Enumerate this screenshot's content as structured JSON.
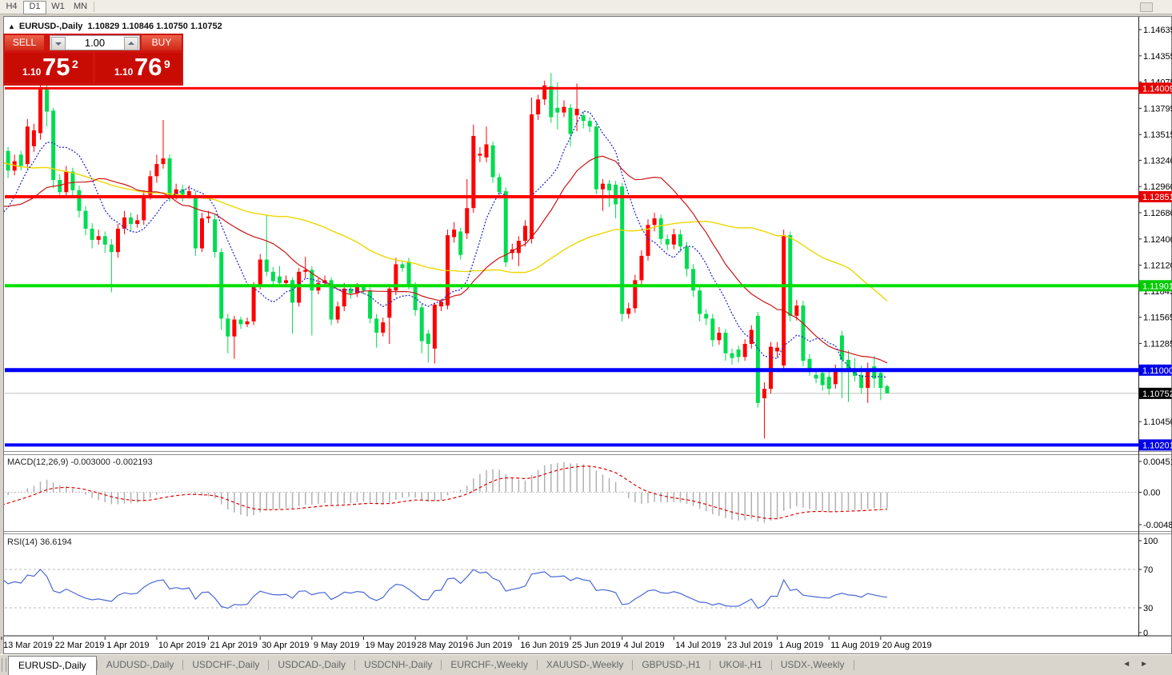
{
  "toolbar": {
    "buttons": [
      "H4",
      "D1",
      "W1",
      "MN"
    ],
    "active": "D1"
  },
  "chart_title": {
    "symbol": "EURUSD-,Daily",
    "ohlc_text": "1.10829 1.10846 1.10750 1.10752"
  },
  "trade_panel": {
    "sell_label": "SELL",
    "buy_label": "BUY",
    "volume": "1.00",
    "sell_price": {
      "small": "1.10",
      "big": "75",
      "sup": "2"
    },
    "buy_price": {
      "small": "1.10",
      "big": "76",
      "sup": "9"
    }
  },
  "price_axis": {
    "ticks": [
      "1.14635",
      "1.14355",
      "1.14075",
      "1.13795",
      "1.13515",
      "1.13240",
      "1.12960",
      "1.12680",
      "1.12400",
      "1.12120",
      "1.11845",
      "1.11565",
      "1.11285",
      "1.10450"
    ],
    "badges": [
      {
        "label": "1.14009",
        "price": 1.14009,
        "color": "#e60000"
      },
      {
        "label": "1.12851",
        "price": 1.12851,
        "color": "#e60000"
      },
      {
        "label": "1.11901",
        "price": 1.11901,
        "color": "#00ca00"
      },
      {
        "label": "1.11000",
        "price": 1.11,
        "color": "#0000e8"
      },
      {
        "label": "1.10752",
        "price": 1.10752,
        "color": "#000000"
      },
      {
        "label": "1.10201",
        "price": 1.10201,
        "color": "#0000e8"
      }
    ]
  },
  "macd_panel": {
    "label": "MACD(12,26,9)",
    "values": "-0.003000 -0.002193",
    "axis": [
      "0.004517",
      "0.00",
      "-0.004806"
    ]
  },
  "rsi_panel": {
    "label": "RSI(14)",
    "value": "36.6194",
    "axis": [
      "100",
      "70",
      "30",
      "0"
    ]
  },
  "date_labels": [
    "13 Mar 2019",
    "22 Mar 2019",
    "1 Apr 2019",
    "10 Apr 2019",
    "21 Apr 2019",
    "30 Apr 2019",
    "9 May 2019",
    "19 May 2019",
    "28 May 2019",
    "6 Jun 2019",
    "16 Jun 2019",
    "25 Jun 2019",
    "4 Jul 2019",
    "14 Jul 2019",
    "23 Jul 2019",
    "1 Aug 2019",
    "11 Aug 2019",
    "20 Aug 2019"
  ],
  "tabs": {
    "items": [
      "EURUSD-,Daily",
      "AUDUSD-,Daily",
      "USDCHF-,Daily",
      "USDCAD-,Daily",
      "USDCNH-,Daily",
      "EURCHF-,Weekly",
      "XAUUSD-,Weekly",
      "GBPUSD-,H1",
      "UKOil-,H1",
      "USDX-,Weekly"
    ],
    "active_index": 0
  },
  "chart_data": {
    "type": "candlestick",
    "symbol": "EURUSD-",
    "timeframe": "Daily",
    "current": {
      "open": 1.10829,
      "high": 1.10846,
      "low": 1.1075,
      "close": 1.10752
    },
    "colors": {
      "bull": "#ff0000",
      "bear": "#00dc50",
      "ma_fast": "#2a2ad0",
      "ma_mid": "#cc1414",
      "ma_slow": "#ecd800",
      "macd_hist": "#b0b0b0",
      "macd_signal": "#e00000",
      "rsi": "#4868d8",
      "price_line": "#c0c0c0"
    },
    "hlines": [
      {
        "price": 1.14009,
        "color": "#ff0000",
        "width": 3
      },
      {
        "price": 1.12851,
        "color": "#ff0000",
        "width": 4
      },
      {
        "price": 1.11901,
        "color": "#00e000",
        "width": 4
      },
      {
        "price": 1.11,
        "color": "#0000ff",
        "width": 5
      },
      {
        "price": 1.10201,
        "color": "#0000ff",
        "width": 4
      }
    ],
    "ma_periods": {
      "fast": 9,
      "mid": 21,
      "slow": 50
    },
    "macd_params": {
      "fast": 12,
      "slow": 26,
      "signal": 9
    },
    "rsi_params": {
      "period": 14,
      "levels": [
        70,
        30
      ]
    },
    "pre_closes": [
      1.1405,
      1.1398,
      1.1402,
      1.1395,
      1.139,
      1.1385,
      1.138,
      1.1378,
      1.1372,
      1.1375,
      1.1368,
      1.1362,
      1.1365,
      1.1358,
      1.1352,
      1.1355,
      1.1348,
      1.1342,
      1.1345,
      1.1338,
      1.1332,
      1.1335,
      1.134,
      1.1336,
      1.133,
      1.1334,
      1.1328,
      1.1332,
      1.1326,
      1.132,
      1.131,
      1.13,
      1.1295,
      1.1288,
      1.1282,
      1.1278,
      1.1272,
      1.1275,
      1.127,
      1.1268,
      1.1272,
      1.1262,
      1.1248,
      1.122,
      1.1185,
      1.124,
      1.127,
      1.1292,
      1.1302,
      1.131
    ],
    "bars": [
      [
        1.1313,
        1.134,
        1.1295,
        1.1332
      ],
      [
        1.1334,
        1.1338,
        1.1305,
        1.1313
      ],
      [
        1.1313,
        1.133,
        1.1308,
        1.1323
      ],
      [
        1.133,
        1.1334,
        1.1313,
        1.1318
      ],
      [
        1.132,
        1.1368,
        1.1315,
        1.136
      ],
      [
        1.1339,
        1.1363,
        1.1333,
        1.1356
      ],
      [
        1.1353,
        1.144,
        1.1346,
        1.1402
      ],
      [
        1.14,
        1.1438,
        1.136,
        1.1376
      ],
      [
        1.1377,
        1.138,
        1.1294,
        1.1303
      ],
      [
        1.1303,
        1.1309,
        1.1284,
        1.129
      ],
      [
        1.129,
        1.1318,
        1.1286,
        1.1312
      ],
      [
        1.1312,
        1.1316,
        1.1285,
        1.1292
      ],
      [
        1.1292,
        1.1297,
        1.1263,
        1.127
      ],
      [
        1.127,
        1.1275,
        1.1244,
        1.1251
      ],
      [
        1.1251,
        1.1257,
        1.123,
        1.1239
      ],
      [
        1.1239,
        1.125,
        1.1234,
        1.1243
      ],
      [
        1.1243,
        1.1248,
        1.1225,
        1.1234
      ],
      [
        1.1234,
        1.124,
        1.1183,
        1.1226
      ],
      [
        1.1226,
        1.1256,
        1.122,
        1.1251
      ],
      [
        1.1251,
        1.127,
        1.1245,
        1.1263
      ],
      [
        1.1263,
        1.1268,
        1.1248,
        1.1256
      ],
      [
        1.1256,
        1.1266,
        1.1252,
        1.126
      ],
      [
        1.126,
        1.1292,
        1.1255,
        1.1287
      ],
      [
        1.1287,
        1.1313,
        1.1282,
        1.1307
      ],
      [
        1.1307,
        1.133,
        1.13,
        1.132
      ],
      [
        1.132,
        1.1367,
        1.1315,
        1.1326
      ],
      [
        1.1326,
        1.133,
        1.128,
        1.1286
      ],
      [
        1.1286,
        1.1299,
        1.1282,
        1.1293
      ],
      [
        1.1293,
        1.1298,
        1.128,
        1.1286
      ],
      [
        1.1286,
        1.1297,
        1.1283,
        1.1291
      ],
      [
        1.1286,
        1.1291,
        1.1222,
        1.123
      ],
      [
        1.123,
        1.1268,
        1.1226,
        1.1262
      ],
      [
        1.1262,
        1.127,
        1.1257,
        1.1264
      ],
      [
        1.1261,
        1.1266,
        1.122,
        1.1226
      ],
      [
        1.1226,
        1.123,
        1.1143,
        1.1155
      ],
      [
        1.1155,
        1.116,
        1.1118,
        1.1136
      ],
      [
        1.1136,
        1.1158,
        1.1112,
        1.1154
      ],
      [
        1.1154,
        1.1157,
        1.1144,
        1.1149
      ],
      [
        1.1149,
        1.1156,
        1.1146,
        1.1152
      ],
      [
        1.1152,
        1.1194,
        1.1148,
        1.119
      ],
      [
        1.119,
        1.1224,
        1.1186,
        1.1218
      ],
      [
        1.1218,
        1.1266,
        1.12,
        1.1205
      ],
      [
        1.1205,
        1.121,
        1.119,
        1.1195
      ],
      [
        1.12,
        1.1211,
        1.1189,
        1.1193
      ],
      [
        1.1193,
        1.1201,
        1.119,
        1.1196
      ],
      [
        1.1196,
        1.1199,
        1.1139,
        1.1172
      ],
      [
        1.1172,
        1.1209,
        1.1168,
        1.1205
      ],
      [
        1.1205,
        1.1221,
        1.1198,
        1.1207
      ],
      [
        1.1207,
        1.1211,
        1.1137,
        1.1185
      ],
      [
        1.1185,
        1.1198,
        1.1181,
        1.1193
      ],
      [
        1.1193,
        1.1201,
        1.119,
        1.1196
      ],
      [
        1.1196,
        1.1199,
        1.1148,
        1.1154
      ],
      [
        1.1154,
        1.1173,
        1.115,
        1.1168
      ],
      [
        1.1168,
        1.1193,
        1.1163,
        1.1187
      ],
      [
        1.1187,
        1.1191,
        1.1176,
        1.1182
      ],
      [
        1.1182,
        1.1193,
        1.1178,
        1.1189
      ],
      [
        1.1189,
        1.1192,
        1.1181,
        1.1185
      ],
      [
        1.1185,
        1.1188,
        1.115,
        1.1155
      ],
      [
        1.1155,
        1.116,
        1.1124,
        1.114
      ],
      [
        1.114,
        1.1156,
        1.1136,
        1.1151
      ],
      [
        1.1156,
        1.119,
        1.1128,
        1.1187
      ],
      [
        1.1185,
        1.122,
        1.118,
        1.1213
      ],
      [
        1.1213,
        1.1216,
        1.1205,
        1.1209
      ],
      [
        1.1216,
        1.122,
        1.1186,
        1.119
      ],
      [
        1.119,
        1.1194,
        1.1158,
        1.1164
      ],
      [
        1.1167,
        1.1171,
        1.1118,
        1.1131
      ],
      [
        1.1139,
        1.1143,
        1.1108,
        1.1128
      ],
      [
        1.1123,
        1.1172,
        1.1107,
        1.117
      ],
      [
        1.1168,
        1.1176,
        1.1163,
        1.1173
      ],
      [
        1.1169,
        1.125,
        1.1165,
        1.1244
      ],
      [
        1.1242,
        1.1258,
        1.1236,
        1.125
      ],
      [
        1.1248,
        1.1252,
        1.1218,
        1.1223
      ],
      [
        1.1246,
        1.1304,
        1.124,
        1.1273
      ],
      [
        1.1273,
        1.1362,
        1.1268,
        1.135
      ],
      [
        1.1329,
        1.1338,
        1.1322,
        1.1331
      ],
      [
        1.1327,
        1.136,
        1.1322,
        1.1341
      ],
      [
        1.134,
        1.1344,
        1.13,
        1.1306
      ],
      [
        1.1306,
        1.131,
        1.1284,
        1.129
      ],
      [
        1.1291,
        1.1295,
        1.121,
        1.1215
      ],
      [
        1.1225,
        1.1235,
        1.1218,
        1.1229
      ],
      [
        1.1225,
        1.1243,
        1.1211,
        1.1238
      ],
      [
        1.1238,
        1.126,
        1.1232,
        1.1254
      ],
      [
        1.124,
        1.1391,
        1.1235,
        1.1373
      ],
      [
        1.1373,
        1.1394,
        1.1367,
        1.1389
      ],
      [
        1.1389,
        1.1409,
        1.1383,
        1.1404
      ],
      [
        1.1403,
        1.1417,
        1.1364,
        1.137
      ],
      [
        1.138,
        1.1407,
        1.1357,
        1.1375
      ],
      [
        1.1375,
        1.1388,
        1.137,
        1.1381
      ],
      [
        1.138,
        1.1384,
        1.1339,
        1.1352
      ],
      [
        1.1372,
        1.1406,
        1.1355,
        1.1379
      ],
      [
        1.1372,
        1.1376,
        1.1358,
        1.1366
      ],
      [
        1.1366,
        1.137,
        1.1354,
        1.136
      ],
      [
        1.136,
        1.1365,
        1.1288,
        1.1293
      ],
      [
        1.1293,
        1.1304,
        1.127,
        1.1299
      ],
      [
        1.1299,
        1.1303,
        1.1274,
        1.1292
      ],
      [
        1.1298,
        1.1302,
        1.1262,
        1.1277
      ],
      [
        1.1296,
        1.13,
        1.1152,
        1.116
      ],
      [
        1.116,
        1.1172,
        1.1155,
        1.1166
      ],
      [
        1.1166,
        1.1202,
        1.1161,
        1.1196
      ],
      [
        1.1196,
        1.1228,
        1.119,
        1.1222
      ],
      [
        1.1222,
        1.1261,
        1.1217,
        1.1255
      ],
      [
        1.1255,
        1.1268,
        1.1248,
        1.1262
      ],
      [
        1.1262,
        1.1266,
        1.1234,
        1.124
      ],
      [
        1.124,
        1.1245,
        1.1228,
        1.1234
      ],
      [
        1.1234,
        1.1251,
        1.1229,
        1.1245
      ],
      [
        1.1245,
        1.125,
        1.1226,
        1.1232
      ],
      [
        1.1232,
        1.1237,
        1.12,
        1.1208
      ],
      [
        1.1208,
        1.1213,
        1.1178,
        1.1185
      ],
      [
        1.1185,
        1.119,
        1.1152,
        1.116
      ],
      [
        1.116,
        1.1165,
        1.1148,
        1.1155
      ],
      [
        1.1155,
        1.116,
        1.1125,
        1.1132
      ],
      [
        1.1132,
        1.1146,
        1.1127,
        1.114
      ],
      [
        1.114,
        1.1144,
        1.111,
        1.1118
      ],
      [
        1.1118,
        1.1123,
        1.1106,
        1.1113
      ],
      [
        1.1122,
        1.1126,
        1.1108,
        1.1114
      ],
      [
        1.1114,
        1.1133,
        1.111,
        1.1128
      ],
      [
        1.1128,
        1.1148,
        1.1123,
        1.1143
      ],
      [
        1.1158,
        1.1162,
        1.106,
        1.1065
      ],
      [
        1.107,
        1.1087,
        1.1027,
        1.108
      ],
      [
        1.108,
        1.113,
        1.1075,
        1.1125
      ],
      [
        1.112,
        1.113,
        1.1114,
        1.1124
      ],
      [
        1.1105,
        1.125,
        1.11,
        1.1244
      ],
      [
        1.1244,
        1.1248,
        1.1152,
        1.1158
      ],
      [
        1.1158,
        1.1175,
        1.1153,
        1.1169
      ],
      [
        1.1169,
        1.1174,
        1.1104,
        1.111
      ],
      [
        1.1112,
        1.1117,
        1.1094,
        1.11
      ],
      [
        1.1095,
        1.11,
        1.1086,
        1.1091
      ],
      [
        1.1097,
        1.1102,
        1.1078,
        1.1084
      ],
      [
        1.1093,
        1.11,
        1.1074,
        1.108
      ],
      [
        1.1085,
        1.1106,
        1.108,
        1.11
      ],
      [
        1.1137,
        1.1142,
        1.107,
        1.1111
      ],
      [
        1.1111,
        1.1121,
        1.1066,
        1.1098
      ],
      [
        1.11,
        1.1113,
        1.1088,
        1.1094
      ],
      [
        1.1095,
        1.1105,
        1.1075,
        1.1081
      ],
      [
        1.1081,
        1.1108,
        1.1065,
        1.1101
      ],
      [
        1.1104,
        1.1115,
        1.1081,
        1.1091
      ],
      [
        1.1097,
        1.11,
        1.1068,
        1.1081
      ],
      [
        1.10829,
        1.10846,
        1.1075,
        1.10752
      ]
    ]
  }
}
